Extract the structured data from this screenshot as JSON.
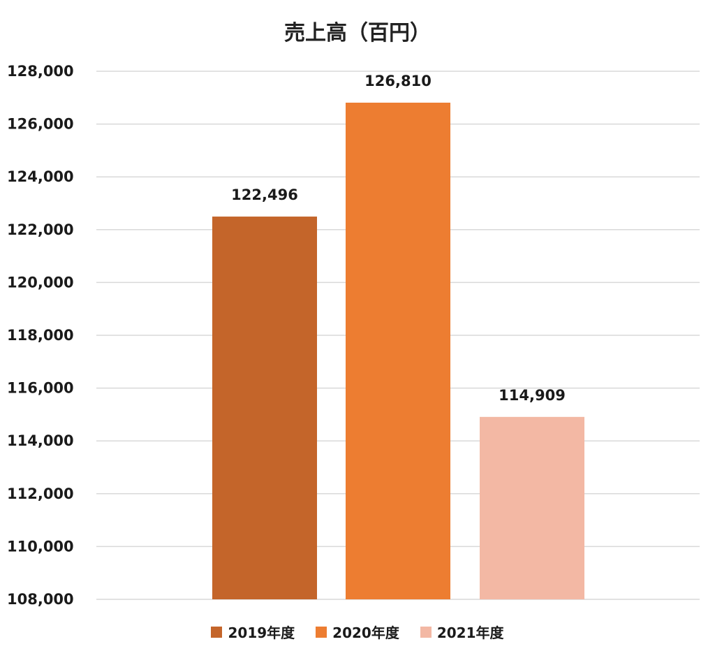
{
  "chart_data": {
    "type": "bar",
    "title": "売上高（百円）",
    "categories": [
      "2019年度",
      "2020年度",
      "2021年度"
    ],
    "values": [
      122496,
      126810,
      114909
    ],
    "value_labels": [
      "122,496",
      "126,810",
      "114,909"
    ],
    "colors": [
      "#c4652a",
      "#ed7d31",
      "#f3b8a4"
    ],
    "ylim": [
      108000,
      128000
    ],
    "yticks": [
      108000,
      110000,
      112000,
      114000,
      116000,
      118000,
      120000,
      122000,
      124000,
      126000,
      128000
    ],
    "ytick_labels": [
      "108,000",
      "110,000",
      "112,000",
      "114,000",
      "116,000",
      "118,000",
      "120,000",
      "122,000",
      "124,000",
      "126,000",
      "128,000"
    ],
    "grid": true,
    "legend_position": "bottom",
    "gridline_color": "#d9d9d9"
  }
}
